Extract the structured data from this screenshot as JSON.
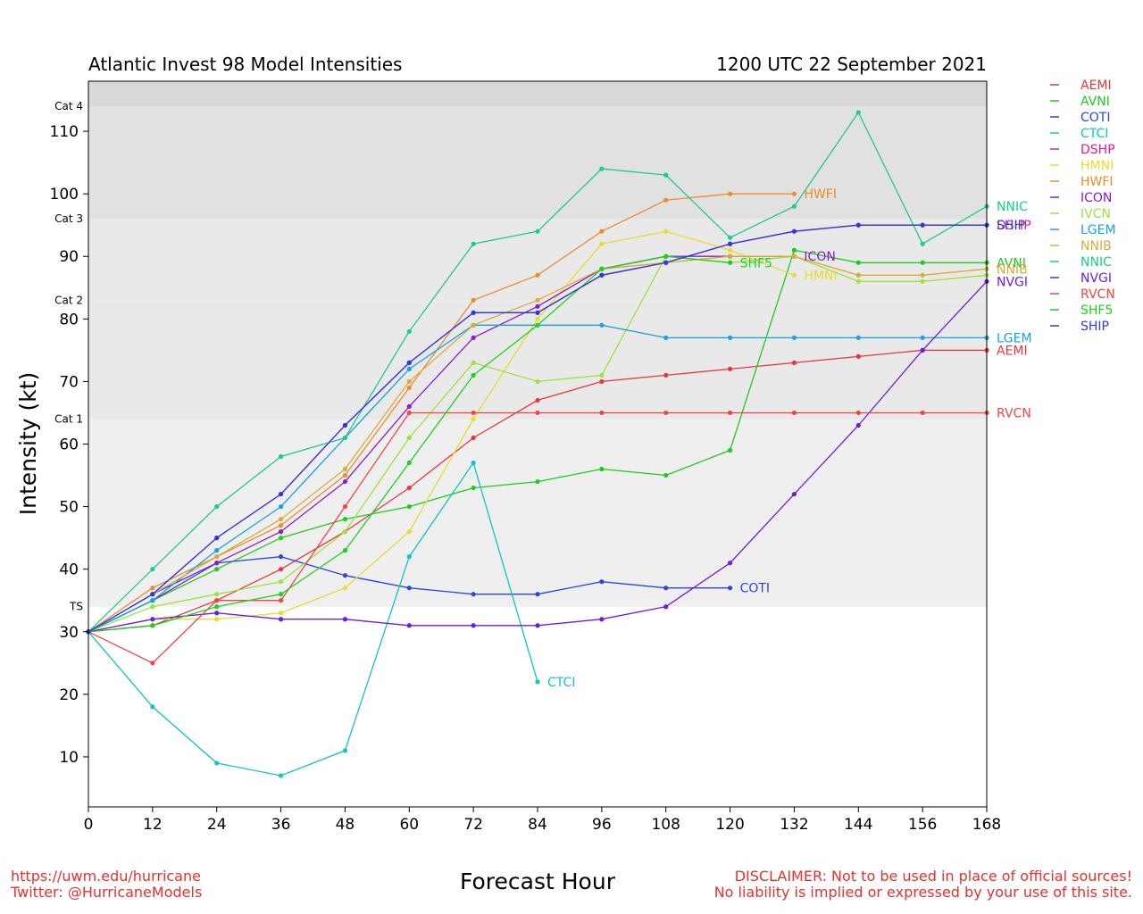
{
  "footer": {
    "left_line1": "https://uwm.edu/hurricane",
    "left_line2": "Twitter: @HurricaneModels",
    "right_line1": "DISCLAIMER: Not to be used in place of official sources!",
    "right_line2": "No liability is implied or expressed by your use of this site."
  },
  "chart_data": {
    "type": "line",
    "title": "Atlantic Invest 98 Model Intensities",
    "subtitle": "1200 UTC 22 September 2021",
    "xlabel": "Forecast Hour",
    "ylabel": "Intensity (kt)",
    "xlim": [
      0,
      168
    ],
    "ylim": [
      2,
      118
    ],
    "x_ticks": [
      0,
      12,
      24,
      36,
      48,
      60,
      72,
      84,
      96,
      108,
      120,
      132,
      144,
      156,
      168
    ],
    "y_ticks": [
      10,
      20,
      30,
      40,
      50,
      60,
      70,
      80,
      90,
      100,
      110
    ],
    "legend_position": "right",
    "grid": false,
    "category_bands": [
      {
        "label": "TS",
        "from": 34,
        "to": 64,
        "color": "#efefef"
      },
      {
        "label": "Cat 1",
        "from": 64,
        "to": 83,
        "color": "#e9e9e9"
      },
      {
        "label": "Cat 2",
        "from": 83,
        "to": 96,
        "color": "#e9e9e9"
      },
      {
        "label": "Cat 3",
        "from": 96,
        "to": 114,
        "color": "#e1e1e1"
      },
      {
        "label": "Cat 4",
        "from": 114,
        "to": 118,
        "color": "#d9d9d9"
      }
    ],
    "series": [
      {
        "name": "AEMI",
        "color": "#e8363c",
        "label_on_plot": "AEMI",
        "x": [
          0,
          12,
          24,
          36,
          48,
          60,
          72,
          84,
          96,
          108,
          120,
          132,
          144,
          156,
          168
        ],
        "y": [
          30,
          31,
          35,
          40,
          46,
          53,
          61,
          67,
          70,
          71,
          72,
          73,
          74,
          75,
          75
        ]
      },
      {
        "name": "AVNI",
        "color": "#1ccc1c",
        "label_on_plot": "AVNI",
        "x": [
          0,
          12,
          24,
          36,
          48,
          60,
          72,
          84,
          96,
          108,
          120,
          132,
          144,
          156,
          168
        ],
        "y": [
          30,
          35,
          40,
          45,
          48,
          50,
          53,
          54,
          56,
          55,
          59,
          91,
          89,
          89,
          89
        ]
      },
      {
        "name": "COTI",
        "color": "#2a46e0",
        "label_on_plot": "COTI",
        "x": [
          0,
          12,
          24,
          36,
          48,
          60,
          72,
          84,
          96,
          108,
          120
        ],
        "y": [
          30,
          36,
          41,
          42,
          39,
          37,
          36,
          36,
          38,
          37,
          37
        ]
      },
      {
        "name": "CTCI",
        "color": "#12c3c3",
        "label_on_plot": "CTCI",
        "x": [
          0,
          12,
          24,
          36,
          48,
          60,
          72,
          84
        ],
        "y": [
          30,
          18,
          9,
          7,
          11,
          42,
          57,
          22
        ]
      },
      {
        "name": "DSHP",
        "color": "#e61c8c",
        "label_on_plot": "DSHP",
        "x": [
          0,
          12,
          24,
          36,
          48,
          60,
          72,
          84,
          96,
          108,
          120,
          132,
          144,
          156,
          168
        ],
        "y": [
          30,
          36,
          45,
          52,
          63,
          73,
          81,
          81,
          87,
          89,
          92,
          94,
          95,
          95,
          95
        ]
      },
      {
        "name": "HMNI",
        "color": "#e6dc32",
        "label_on_plot": "HMNI",
        "x": [
          0,
          12,
          24,
          36,
          48,
          60,
          72,
          84,
          96,
          108,
          120,
          132
        ],
        "y": [
          30,
          32,
          32,
          33,
          37,
          46,
          64,
          80,
          92,
          94,
          91,
          87
        ]
      },
      {
        "name": "HWFI",
        "color": "#ef8a2c",
        "label_on_plot": "HWFI",
        "x": [
          0,
          12,
          24,
          36,
          48,
          60,
          72,
          84,
          96,
          108,
          120,
          132
        ],
        "y": [
          30,
          37,
          42,
          47,
          55,
          69,
          83,
          87,
          94,
          99,
          100,
          100
        ]
      },
      {
        "name": "ICON",
        "color": "#8a1ccc",
        "label_on_plot": "ICON",
        "x": [
          0,
          12,
          24,
          36,
          48,
          60,
          72,
          84,
          96,
          108,
          120,
          132
        ],
        "y": [
          30,
          35,
          41,
          46,
          54,
          66,
          77,
          82,
          88,
          90,
          90,
          90
        ]
      },
      {
        "name": "IVCN",
        "color": "#9ee23c",
        "label_on_plot": "",
        "x": [
          0,
          12,
          24,
          36,
          48,
          60,
          72,
          84,
          96,
          108,
          120,
          132,
          144,
          156,
          168
        ],
        "y": [
          30,
          34,
          36,
          38,
          46,
          61,
          73,
          70,
          71,
          90,
          89,
          90,
          86,
          86,
          87
        ]
      },
      {
        "name": "LGEM",
        "color": "#16a2e6",
        "label_on_plot": "LGEM",
        "x": [
          0,
          12,
          24,
          36,
          48,
          60,
          72,
          84,
          96,
          108,
          120,
          132,
          144,
          156,
          168
        ],
        "y": [
          30,
          35,
          43,
          50,
          61,
          72,
          79,
          79,
          79,
          77,
          77,
          77,
          77,
          77,
          77
        ]
      },
      {
        "name": "NNIB",
        "color": "#d6ac3c",
        "label_on_plot": "NNIB",
        "x": [
          0,
          12,
          24,
          36,
          48,
          60,
          72,
          84,
          96,
          108,
          120,
          132,
          144,
          156,
          168
        ],
        "y": [
          30,
          36,
          42,
          48,
          56,
          70,
          79,
          83,
          88,
          89,
          90,
          90,
          87,
          87,
          88
        ]
      },
      {
        "name": "NNIC",
        "color": "#1ccc8a",
        "label_on_plot": "NNIC",
        "x": [
          0,
          12,
          24,
          36,
          48,
          60,
          72,
          84,
          96,
          108,
          120,
          132,
          144,
          156,
          168
        ],
        "y": [
          30,
          40,
          50,
          58,
          61,
          78,
          92,
          94,
          104,
          103,
          93,
          98,
          113,
          92,
          98
        ]
      },
      {
        "name": "NVGI",
        "color": "#6e1ce0",
        "label_on_plot": "NVGI",
        "x": [
          0,
          12,
          24,
          36,
          48,
          60,
          72,
          84,
          96,
          108,
          120,
          132,
          144,
          156,
          168
        ],
        "y": [
          30,
          32,
          33,
          32,
          32,
          31,
          31,
          31,
          32,
          34,
          41,
          52,
          63,
          75,
          86
        ]
      },
      {
        "name": "RVCN",
        "color": "#f04646",
        "label_on_plot": "RVCN",
        "x": [
          0,
          12,
          24,
          36,
          48,
          60,
          72,
          84,
          96,
          108,
          120,
          132,
          144,
          156,
          168
        ],
        "y": [
          30,
          25,
          35,
          35,
          50,
          65,
          65,
          65,
          65,
          65,
          65,
          65,
          65,
          65,
          65
        ]
      },
      {
        "name": "SHF5",
        "color": "#1cd21c",
        "label_on_plot": "SHF5",
        "x": [
          0,
          12,
          24,
          36,
          48,
          60,
          72,
          84,
          96,
          108,
          120
        ],
        "y": [
          30,
          31,
          34,
          36,
          43,
          57,
          71,
          79,
          88,
          90,
          89
        ]
      },
      {
        "name": "SHIP",
        "color": "#2a3ce0",
        "label_on_plot": "SHIP",
        "x": [
          0,
          12,
          24,
          36,
          48,
          60,
          72,
          84,
          96,
          108,
          120,
          132,
          144,
          156,
          168
        ],
        "y": [
          30,
          36,
          45,
          52,
          63,
          73,
          81,
          81,
          87,
          89,
          92,
          94,
          95,
          95,
          95
        ]
      }
    ]
  }
}
